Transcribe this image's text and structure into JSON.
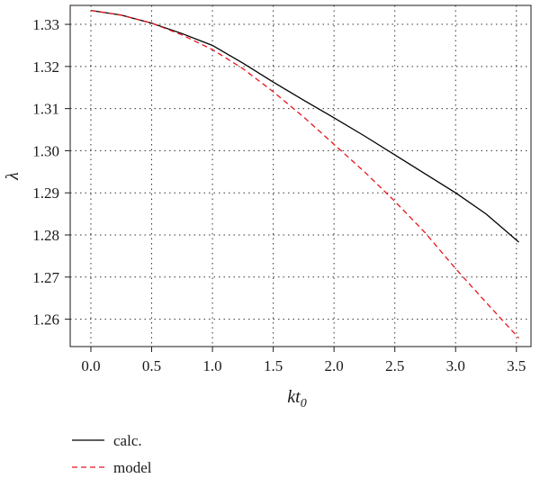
{
  "chart_data": {
    "type": "line",
    "title": "",
    "xlabel": {
      "main": "kt",
      "sub": "0"
    },
    "ylabel": "λ",
    "xlim": [
      -0.17,
      3.62
    ],
    "ylim": [
      1.2535,
      1.3345
    ],
    "xticks": [
      "0.0",
      "0.5",
      "1.0",
      "1.5",
      "2.0",
      "2.5",
      "3.0",
      "3.5"
    ],
    "yticks": [
      "1.26",
      "1.27",
      "1.28",
      "1.29",
      "1.30",
      "1.31",
      "1.32",
      "1.33"
    ],
    "grid": true,
    "legend_position": "bottom-left",
    "series": [
      {
        "name": "calc.",
        "color": "#000000",
        "style": "solid",
        "x": [
          0.0,
          0.25,
          0.5,
          0.75,
          1.0,
          1.25,
          1.5,
          1.75,
          2.0,
          2.25,
          2.5,
          2.75,
          3.0,
          3.25,
          3.52
        ],
        "y": [
          1.3333,
          1.3322,
          1.3303,
          1.3278,
          1.325,
          1.3208,
          1.3163,
          1.312,
          1.3078,
          1.3035,
          1.299,
          1.2945,
          1.29,
          1.285,
          1.2783
        ]
      },
      {
        "name": "model",
        "color": "#e8141c",
        "style": "dashed",
        "x": [
          0.0,
          0.25,
          0.5,
          0.75,
          1.0,
          1.25,
          1.5,
          1.75,
          2.0,
          2.25,
          2.5,
          2.75,
          3.0,
          3.25,
          3.52
        ],
        "y": [
          1.3333,
          1.3322,
          1.3303,
          1.3275,
          1.324,
          1.3195,
          1.314,
          1.308,
          1.3015,
          1.295,
          1.288,
          1.2805,
          1.272,
          1.264,
          1.2555
        ]
      }
    ]
  }
}
